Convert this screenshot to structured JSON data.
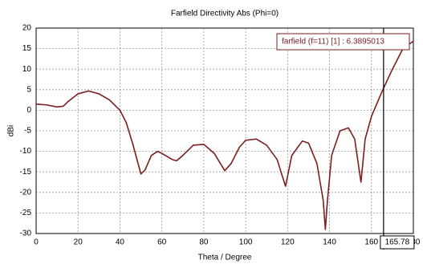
{
  "chart_data": {
    "type": "line",
    "title": "Farfield Directivity Abs (Phi=0)",
    "x_label": "Theta / Degree",
    "y_label": "dBi",
    "x": [
      0,
      5,
      10,
      13,
      15,
      20,
      25,
      30,
      35,
      40,
      43,
      46,
      50,
      52,
      55,
      58,
      60,
      65,
      67,
      70,
      75,
      80,
      85,
      90,
      93,
      97,
      100,
      105,
      110,
      115,
      119,
      122,
      127,
      130,
      134,
      137,
      138,
      139,
      141,
      145,
      149,
      152,
      155,
      157,
      160,
      165,
      170,
      175,
      180
    ],
    "series": [
      {
        "name": "farfield (f=11) [1] : 6.3895013",
        "color": "#7a1f1f",
        "values": [
          1.5,
          1.3,
          0.8,
          1,
          2,
          4,
          4.7,
          4,
          2.5,
          0,
          -3,
          -8,
          -15.5,
          -14.5,
          -11,
          -10,
          -10.5,
          -12,
          -12.3,
          -11,
          -8.5,
          -8.3,
          -10.5,
          -14.7,
          -13,
          -9,
          -7.3,
          -7,
          -8.5,
          -12,
          -18.5,
          -11,
          -7.5,
          -8,
          -13,
          -22,
          -29,
          -22,
          -11,
          -5,
          -4.3,
          -7,
          -17.5,
          -7,
          -1.5,
          4.5,
          10,
          15,
          16.8
        ]
      }
    ],
    "xlim": [
      0,
      180
    ],
    "xticks": [
      0,
      20,
      40,
      60,
      80,
      100,
      120,
      140,
      160,
      180
    ],
    "ylim": [
      -30,
      20
    ],
    "yticks": [
      20,
      15,
      10,
      5,
      0,
      -5,
      -10,
      -15,
      -20,
      -25,
      -30
    ],
    "grid": true,
    "marker_x": 165.78
  }
}
